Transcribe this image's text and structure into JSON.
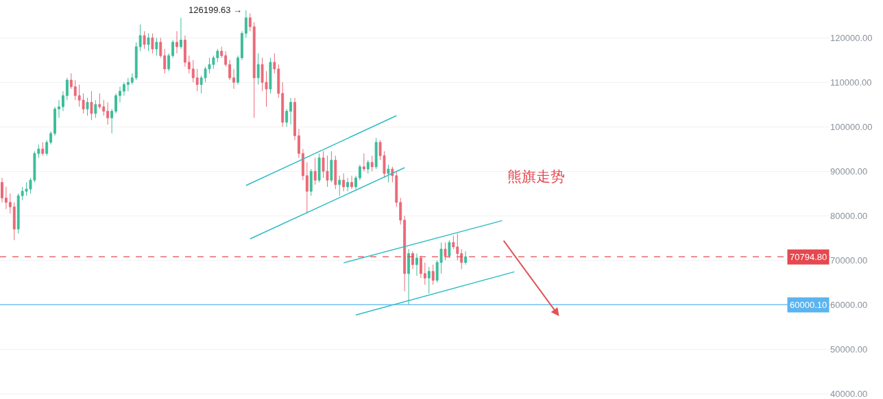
{
  "chart_data": {
    "type": "candlestick",
    "categories": [
      null,
      null,
      null,
      null,
      null,
      null,
      null,
      null,
      null,
      null,
      null,
      null,
      null,
      null,
      null,
      null,
      null,
      null,
      null,
      null,
      null,
      null,
      null,
      null,
      null,
      null,
      null,
      null,
      null,
      null,
      null,
      null,
      null,
      null,
      null,
      null,
      null,
      null,
      null,
      null,
      null,
      null,
      null,
      null,
      null,
      null,
      null,
      null,
      null,
      null,
      null,
      null,
      null,
      null,
      null,
      null,
      null,
      null,
      null,
      null,
      null,
      null,
      null,
      null,
      null,
      null,
      null,
      null,
      null,
      null,
      null,
      null,
      null,
      null,
      null,
      null,
      null,
      null,
      null,
      null,
      null,
      null,
      null,
      null,
      null,
      null,
      null,
      null,
      null,
      null,
      null,
      null,
      null,
      null,
      null,
      null,
      null,
      null,
      null,
      null,
      null,
      null,
      null,
      null,
      null,
      null,
      null,
      null,
      null,
      null,
      null,
      null,
      null,
      null,
      null,
      null,
      null,
      null,
      null,
      null,
      null,
      null,
      null,
      null,
      null,
      null,
      null,
      null,
      null,
      null,
      null,
      null,
      null,
      null,
      null,
      null,
      null,
      null,
      null,
      null,
      null,
      null,
      null,
      null,
      null,
      null,
      null,
      null,
      null,
      null,
      null,
      null,
      null,
      null,
      null,
      null,
      null,
      null,
      null,
      null,
      null,
      null,
      null,
      null,
      null,
      null,
      null,
      null,
      null,
      null,
      null,
      null,
      null,
      null,
      null,
      null,
      null,
      null,
      null,
      null,
      null,
      null,
      null,
      null,
      null,
      null,
      null,
      null,
      null,
      null,
      null,
      null,
      null,
      null,
      null,
      null,
      null,
      null,
      null,
      null,
      null,
      null,
      null,
      null
    ],
    "ohlc": [
      [
        87500,
        88500,
        83000,
        84000
      ],
      [
        84000,
        86500,
        81500,
        83000
      ],
      [
        83000,
        85000,
        80500,
        82000
      ],
      [
        82000,
        83000,
        74500,
        77000
      ],
      [
        77000,
        85000,
        76000,
        84500
      ],
      [
        84500,
        86500,
        83500,
        85500
      ],
      [
        85500,
        87500,
        84500,
        86000
      ],
      [
        86000,
        88500,
        85000,
        88000
      ],
      [
        88000,
        94500,
        87500,
        94000
      ],
      [
        94000,
        96000,
        93000,
        95000
      ],
      [
        95000,
        96500,
        93500,
        94000
      ],
      [
        94000,
        97000,
        93500,
        96500
      ],
      [
        96500,
        99000,
        96000,
        98500
      ],
      [
        98500,
        104500,
        98000,
        104000
      ],
      [
        104000,
        106000,
        102000,
        104500
      ],
      [
        104500,
        108000,
        103500,
        107000
      ],
      [
        107000,
        111000,
        106000,
        110500
      ],
      [
        110500,
        112000,
        108500,
        109000
      ],
      [
        109000,
        110500,
        106000,
        107000
      ],
      [
        107000,
        109500,
        104500,
        106000
      ],
      [
        106000,
        107500,
        103000,
        104000
      ],
      [
        104000,
        106500,
        102500,
        105500
      ],
      [
        105500,
        108000,
        101500,
        103000
      ],
      [
        103000,
        106000,
        102000,
        105000
      ],
      [
        105000,
        107500,
        104000,
        104500
      ],
      [
        104500,
        106000,
        102500,
        103500
      ],
      [
        103500,
        105500,
        100500,
        102000
      ],
      [
        102000,
        104000,
        98500,
        103500
      ],
      [
        103500,
        107500,
        103000,
        107000
      ],
      [
        107000,
        109000,
        105500,
        108000
      ],
      [
        108000,
        110000,
        107000,
        109500
      ],
      [
        109500,
        111000,
        108000,
        110000
      ],
      [
        110000,
        112000,
        109500,
        111000
      ],
      [
        111000,
        119000,
        110500,
        118000
      ],
      [
        118000,
        123000,
        117000,
        120500
      ],
      [
        120500,
        121500,
        117500,
        118500
      ],
      [
        118500,
        121000,
        117000,
        120000
      ],
      [
        120000,
        121000,
        116500,
        117500
      ],
      [
        117500,
        120000,
        116000,
        119000
      ],
      [
        119000,
        120000,
        115500,
        116000
      ],
      [
        116000,
        117500,
        112000,
        113000
      ],
      [
        113000,
        116500,
        112500,
        116000
      ],
      [
        116000,
        119500,
        115500,
        119000
      ],
      [
        119000,
        121500,
        116500,
        118000
      ],
      [
        118000,
        124500,
        117500,
        119500
      ],
      [
        119500,
        120500,
        113500,
        114500
      ],
      [
        114500,
        116000,
        112000,
        113000
      ],
      [
        113000,
        115000,
        110000,
        111000
      ],
      [
        111000,
        113000,
        108000,
        109500
      ],
      [
        109500,
        111500,
        107500,
        111000
      ],
      [
        111000,
        113500,
        110000,
        113000
      ],
      [
        113000,
        115500,
        112000,
        114000
      ],
      [
        114000,
        116000,
        113000,
        115500
      ],
      [
        115500,
        117500,
        114500,
        117000
      ],
      [
        117000,
        118000,
        115500,
        116000
      ],
      [
        116000,
        117000,
        113500,
        114000
      ],
      [
        114000,
        115000,
        110500,
        111000
      ],
      [
        111000,
        113000,
        108500,
        110000
      ],
      [
        110000,
        116000,
        109500,
        115500
      ],
      [
        115500,
        121500,
        115000,
        121000
      ],
      [
        121000,
        126199.63,
        120000,
        124500
      ],
      [
        124500,
        125500,
        121500,
        122500
      ],
      [
        122500,
        123500,
        102000,
        111000
      ],
      [
        111000,
        116500,
        109500,
        114000
      ],
      [
        114000,
        115500,
        108000,
        110000
      ],
      [
        110000,
        112500,
        104500,
        108500
      ],
      [
        108500,
        115500,
        107500,
        114500
      ],
      [
        114500,
        116500,
        112000,
        113000
      ],
      [
        113000,
        114000,
        106500,
        107500
      ],
      [
        107500,
        110000,
        100000,
        101000
      ],
      [
        101000,
        104000,
        100000,
        103500
      ],
      [
        103500,
        106500,
        100500,
        105500
      ],
      [
        105500,
        106500,
        97000,
        98000
      ],
      [
        98000,
        99500,
        93000,
        94000
      ],
      [
        94000,
        95000,
        88000,
        89000
      ],
      [
        89000,
        92000,
        80500,
        85500
      ],
      [
        85500,
        90500,
        84500,
        90000
      ],
      [
        90000,
        93000,
        87000,
        88000
      ],
      [
        88000,
        94000,
        87500,
        93000
      ],
      [
        93000,
        94500,
        88500,
        90000
      ],
      [
        90000,
        93500,
        86500,
        88000
      ],
      [
        88000,
        94500,
        87500,
        92500
      ],
      [
        92500,
        93500,
        86000,
        87000
      ],
      [
        87000,
        89000,
        84500,
        88000
      ],
      [
        88000,
        89500,
        85500,
        86500
      ],
      [
        86500,
        88500,
        85500,
        87500
      ],
      [
        87500,
        89000,
        86000,
        86500
      ],
      [
        86500,
        89000,
        86000,
        88500
      ],
      [
        88500,
        91500,
        88000,
        91000
      ],
      [
        91000,
        94000,
        90000,
        90500
      ],
      [
        90500,
        92500,
        89500,
        92000
      ],
      [
        92000,
        93500,
        90000,
        91000
      ],
      [
        91000,
        97500,
        90500,
        96500
      ],
      [
        96500,
        97000,
        92500,
        93500
      ],
      [
        93500,
        94500,
        88500,
        89500
      ],
      [
        89500,
        91500,
        87500,
        90500
      ],
      [
        90500,
        91000,
        87500,
        89000
      ],
      [
        89000,
        90000,
        82000,
        83000
      ],
      [
        83000,
        84000,
        78000,
        79000
      ],
      [
        79000,
        80000,
        63000,
        67000
      ],
      [
        67000,
        72500,
        60000.1,
        71500
      ],
      [
        71500,
        72000,
        68000,
        69000
      ],
      [
        69000,
        71500,
        66500,
        70500
      ],
      [
        70500,
        71000,
        66000,
        67000
      ],
      [
        67000,
        69500,
        64500,
        66000
      ],
      [
        66000,
        68500,
        62500,
        67500
      ],
      [
        67500,
        69000,
        64500,
        65500
      ],
      [
        65500,
        70000,
        65000,
        69500
      ],
      [
        69500,
        74000,
        67000,
        72500
      ],
      [
        72500,
        74000,
        70000,
        71000
      ],
      [
        71000,
        74500,
        70500,
        74000
      ],
      [
        74000,
        75500,
        72500,
        73000
      ],
      [
        73000,
        76000,
        70000,
        71500
      ],
      [
        71500,
        72500,
        68000,
        69500
      ],
      [
        69500,
        72000,
        69000,
        70794.8
      ],
      null,
      null,
      null,
      null,
      null,
      null,
      null,
      null,
      null,
      null,
      null,
      null,
      null,
      null,
      null,
      null,
      null,
      null,
      null,
      null,
      null,
      null,
      null,
      null,
      null,
      null,
      null,
      null,
      null,
      null,
      null,
      null,
      null,
      null,
      null,
      null,
      null,
      null,
      null,
      null,
      null,
      null,
      null,
      null,
      null,
      null,
      null,
      null,
      null,
      null,
      null,
      null,
      null,
      null,
      null,
      null,
      null,
      null,
      null,
      null,
      null,
      null,
      null,
      null,
      null,
      null,
      null,
      null,
      null,
      null,
      null,
      null,
      null,
      null,
      null,
      null,
      null,
      null,
      null,
      null,
      null,
      null,
      null,
      null,
      null,
      null,
      null,
      null,
      null
    ],
    "series": [
      {
        "type": "line",
        "color": "#2bbcc4",
        "values": [
          null,
          null,
          null,
          null,
          null,
          null,
          null,
          null,
          null,
          null,
          null,
          null,
          null,
          null,
          null,
          null,
          null,
          null,
          null,
          null,
          null,
          null,
          null,
          null,
          null,
          null,
          null,
          null,
          null,
          null,
          null,
          null,
          null,
          null,
          null,
          null,
          null,
          null,
          null,
          null,
          null,
          null,
          null,
          null,
          null,
          null,
          null,
          null,
          null,
          null,
          null,
          null,
          null,
          null,
          null,
          null,
          null,
          null,
          null,
          null,
          86800,
          null,
          null,
          null,
          null,
          null,
          null,
          null,
          null,
          null,
          null,
          null,
          null,
          null,
          null,
          null,
          null,
          null,
          null,
          null,
          null,
          null,
          null,
          null,
          null,
          null,
          null,
          null,
          null,
          null,
          null,
          null,
          null,
          null,
          null,
          null,
          null,
          102500,
          null,
          null,
          null,
          null,
          null,
          null,
          null,
          null,
          null,
          null,
          null,
          null,
          null,
          null,
          null,
          null,
          null,
          null,
          null,
          null,
          null,
          null,
          null,
          null,
          null,
          null,
          null,
          null,
          null,
          null,
          null,
          null,
          null,
          null,
          null,
          null,
          null,
          null,
          null,
          null,
          null,
          null,
          null,
          null,
          null,
          null,
          null,
          null,
          null,
          null,
          null,
          null,
          null,
          null,
          null,
          null,
          null,
          null,
          null,
          null,
          null,
          null,
          null,
          null,
          null,
          null,
          null,
          null,
          null,
          null,
          null,
          null,
          null,
          null,
          null,
          null,
          null,
          null,
          null,
          null,
          null,
          null,
          null,
          null,
          null,
          null,
          null,
          null,
          null,
          null,
          null,
          null,
          null,
          null,
          null,
          null,
          null,
          null,
          null,
          null,
          null,
          null,
          null,
          null,
          null,
          null
        ]
      },
      {
        "type": "line",
        "color": "#2bbcc4",
        "values": [
          null,
          null,
          null,
          null,
          null,
          null,
          null,
          null,
          null,
          null,
          null,
          null,
          null,
          null,
          null,
          null,
          null,
          null,
          null,
          null,
          null,
          null,
          null,
          null,
          null,
          null,
          null,
          null,
          null,
          null,
          null,
          null,
          null,
          null,
          null,
          null,
          null,
          null,
          null,
          null,
          null,
          null,
          null,
          null,
          null,
          null,
          null,
          null,
          null,
          null,
          null,
          null,
          null,
          null,
          null,
          null,
          null,
          null,
          null,
          null,
          null,
          74800,
          null,
          null,
          null,
          null,
          null,
          null,
          null,
          null,
          null,
          null,
          null,
          null,
          null,
          null,
          null,
          null,
          null,
          null,
          null,
          null,
          null,
          null,
          null,
          null,
          null,
          null,
          null,
          null,
          null,
          null,
          null,
          null,
          null,
          null,
          null,
          null,
          null,
          90800,
          null,
          null,
          null,
          null,
          null,
          null,
          null,
          null,
          null,
          null,
          null,
          null,
          null,
          null,
          null,
          null,
          null,
          null,
          null,
          null,
          null,
          null,
          null,
          null,
          null,
          null,
          null,
          null,
          null,
          null,
          null,
          null,
          null,
          null,
          null,
          null,
          null,
          null,
          null,
          null,
          null,
          null,
          null,
          null,
          null,
          null,
          null,
          null,
          null,
          null,
          null,
          null,
          null,
          null,
          null,
          null,
          null,
          null,
          null,
          null,
          null,
          null,
          null,
          null,
          null,
          null,
          null,
          null,
          null,
          null,
          null,
          null,
          null,
          null,
          null,
          null,
          null,
          null,
          null,
          null,
          null,
          null,
          null,
          null,
          null,
          null,
          null,
          null,
          null,
          null,
          null,
          null,
          null,
          null,
          null,
          null,
          null,
          null,
          null,
          null,
          null,
          null,
          null,
          null
        ]
      },
      {
        "type": "line",
        "color": "#2bbcc4",
        "values": [
          null,
          null,
          null,
          null,
          null,
          null,
          null,
          null,
          null,
          null,
          null,
          null,
          null,
          null,
          null,
          null,
          null,
          null,
          null,
          null,
          null,
          null,
          null,
          null,
          null,
          null,
          null,
          null,
          null,
          null,
          null,
          null,
          null,
          null,
          null,
          null,
          null,
          null,
          null,
          null,
          null,
          null,
          null,
          null,
          null,
          null,
          null,
          null,
          null,
          null,
          null,
          null,
          null,
          null,
          null,
          null,
          null,
          null,
          null,
          null,
          null,
          null,
          null,
          null,
          null,
          null,
          null,
          null,
          null,
          null,
          null,
          null,
          null,
          null,
          null,
          null,
          null,
          null,
          null,
          null,
          null,
          null,
          null,
          null,
          69400,
          null,
          null,
          null,
          null,
          null,
          null,
          null,
          null,
          null,
          null,
          null,
          null,
          null,
          null,
          null,
          null,
          null,
          null,
          null,
          null,
          null,
          null,
          null,
          null,
          null,
          null,
          null,
          null,
          null,
          null,
          null,
          null,
          null,
          null,
          null,
          null,
          null,
          null,
          78900,
          null,
          null,
          null,
          null,
          null,
          null,
          null,
          null,
          null,
          null,
          null,
          null,
          null,
          null,
          null,
          null,
          null,
          null,
          null,
          null,
          null,
          null,
          null,
          null,
          null,
          null,
          null,
          null,
          null,
          null,
          null,
          null,
          null,
          null,
          null,
          null,
          null,
          null,
          null,
          null,
          null,
          null,
          null,
          null,
          null,
          null,
          null,
          null,
          null,
          null,
          null,
          null,
          null,
          null,
          null,
          null,
          null,
          null,
          null,
          null,
          null,
          null,
          null,
          null,
          null,
          null,
          null,
          null,
          null,
          null,
          null,
          null,
          null,
          null,
          null,
          null,
          null,
          null,
          null,
          null
        ]
      },
      {
        "type": "line",
        "color": "#2bbcc4",
        "values": [
          null,
          null,
          null,
          null,
          null,
          null,
          null,
          null,
          null,
          null,
          null,
          null,
          null,
          null,
          null,
          null,
          null,
          null,
          null,
          null,
          null,
          null,
          null,
          null,
          null,
          null,
          null,
          null,
          null,
          null,
          null,
          null,
          null,
          null,
          null,
          null,
          null,
          null,
          null,
          null,
          null,
          null,
          null,
          null,
          null,
          null,
          null,
          null,
          null,
          null,
          null,
          null,
          null,
          null,
          null,
          null,
          null,
          null,
          null,
          null,
          null,
          null,
          null,
          null,
          null,
          null,
          null,
          null,
          null,
          null,
          null,
          null,
          null,
          null,
          null,
          null,
          null,
          null,
          null,
          null,
          null,
          null,
          null,
          null,
          null,
          null,
          null,
          57700,
          null,
          null,
          null,
          null,
          null,
          null,
          null,
          null,
          null,
          null,
          null,
          null,
          null,
          null,
          null,
          null,
          null,
          null,
          null,
          null,
          null,
          null,
          null,
          null,
          null,
          null,
          null,
          null,
          null,
          null,
          null,
          null,
          null,
          null,
          null,
          null,
          null,
          null,
          67400,
          null,
          null,
          null,
          null,
          null,
          null,
          null,
          null,
          null,
          null,
          null,
          null,
          null,
          null,
          null,
          null,
          null,
          null,
          null,
          null,
          null,
          null,
          null,
          null,
          null,
          null,
          null,
          null,
          null,
          null,
          null,
          null,
          null,
          null,
          null,
          null,
          null,
          null,
          null,
          null,
          null,
          null,
          null,
          null,
          null,
          null,
          null,
          null,
          null,
          null,
          null,
          null,
          null,
          null,
          null,
          null,
          null,
          null,
          null,
          null,
          null,
          null,
          null,
          null,
          null,
          null,
          null,
          null,
          null,
          null,
          null,
          null,
          null,
          null,
          null,
          null,
          null
        ]
      }
    ],
    "annotations": [
      "126199.63 →",
      "熊旗走势"
    ],
    "ref_lines": [
      {
        "axis": "y",
        "value": 70794.8,
        "label": "70794.80",
        "color": "#e5484f",
        "line_style": "dashed"
      },
      {
        "axis": "y",
        "value": 60000.1,
        "label": "60000.10",
        "color": "#5ab4f0",
        "line_style": "solid"
      }
    ],
    "ylim": [
      38800,
      128500
    ],
    "yticks": [
      {
        "value": 40000,
        "label": "40000.00"
      },
      {
        "value": 50000,
        "label": "50000.00"
      },
      {
        "value": 60000,
        "label": "60000.00"
      },
      {
        "value": 70000,
        "label": "70000.00"
      },
      {
        "value": 80000,
        "label": "80000.00"
      },
      {
        "value": 90000,
        "label": "90000.00"
      },
      {
        "value": 100000,
        "label": "100000.00"
      },
      {
        "value": 110000,
        "label": "110000.00"
      },
      {
        "value": 120000,
        "label": "120000.00"
      }
    ],
    "tick_labels": "y",
    "grid": "y"
  }
}
